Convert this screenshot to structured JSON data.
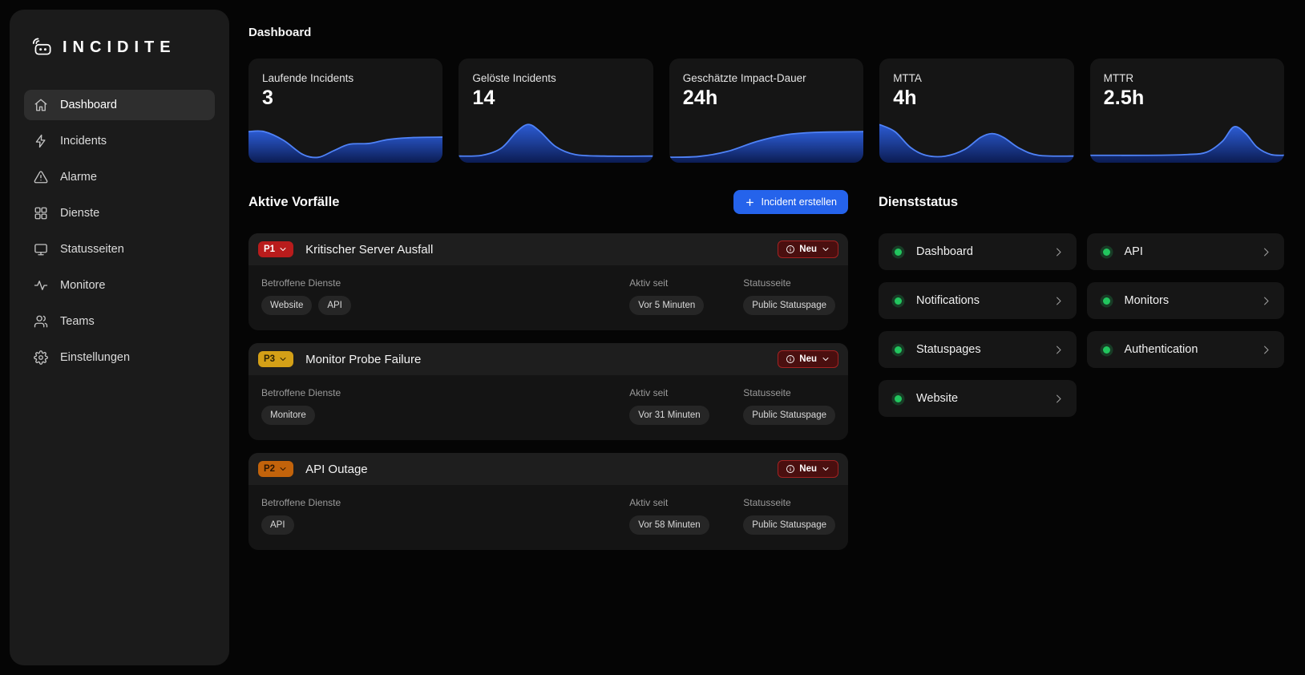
{
  "colors": {
    "accent_blue": "#2563eb",
    "spark_line": "#4f82f7",
    "status_green": "#22c55e",
    "neu_badge_bg": "#4a0f0f",
    "neu_badge_border": "#a32222"
  },
  "sidebar": {
    "logo": "INCIDITE",
    "items": [
      {
        "label": "Dashboard",
        "icon": "home-icon",
        "active": true
      },
      {
        "label": "Incidents",
        "icon": "bolt-icon",
        "active": false
      },
      {
        "label": "Alarme",
        "icon": "alert-triangle-icon",
        "active": false
      },
      {
        "label": "Dienste",
        "icon": "grid-icon",
        "active": false
      },
      {
        "label": "Statusseiten",
        "icon": "monitor-icon",
        "active": false
      },
      {
        "label": "Monitore",
        "icon": "activity-icon",
        "active": false
      },
      {
        "label": "Teams",
        "icon": "users-icon",
        "active": false
      },
      {
        "label": "Einstellungen",
        "icon": "gear-icon",
        "active": false
      }
    ]
  },
  "header": {
    "title": "Dashboard"
  },
  "stats": [
    {
      "label": "Laufende Incidents",
      "value": "3",
      "spark": [
        [
          0,
          0.3
        ],
        [
          0.08,
          0.3
        ],
        [
          0.18,
          0.52
        ],
        [
          0.28,
          0.88
        ],
        [
          0.36,
          0.95
        ],
        [
          0.44,
          0.78
        ],
        [
          0.52,
          0.62
        ],
        [
          0.62,
          0.6
        ],
        [
          0.72,
          0.5
        ],
        [
          0.85,
          0.45
        ],
        [
          1,
          0.44
        ]
      ]
    },
    {
      "label": "Gelöste Incidents",
      "value": "14",
      "spark": [
        [
          0,
          0.92
        ],
        [
          0.12,
          0.9
        ],
        [
          0.22,
          0.72
        ],
        [
          0.3,
          0.3
        ],
        [
          0.36,
          0.12
        ],
        [
          0.42,
          0.3
        ],
        [
          0.5,
          0.68
        ],
        [
          0.6,
          0.88
        ],
        [
          0.75,
          0.92
        ],
        [
          1,
          0.92
        ]
      ]
    },
    {
      "label": "Geschätzte Impact-Dauer",
      "value": "24h",
      "spark": [
        [
          0,
          0.95
        ],
        [
          0.15,
          0.93
        ],
        [
          0.3,
          0.8
        ],
        [
          0.45,
          0.55
        ],
        [
          0.6,
          0.38
        ],
        [
          0.75,
          0.32
        ],
        [
          1,
          0.3
        ]
      ]
    },
    {
      "label": "MTTA",
      "value": "4h",
      "spark": [
        [
          0,
          0.12
        ],
        [
          0.08,
          0.3
        ],
        [
          0.16,
          0.7
        ],
        [
          0.24,
          0.9
        ],
        [
          0.34,
          0.92
        ],
        [
          0.44,
          0.75
        ],
        [
          0.52,
          0.45
        ],
        [
          0.58,
          0.35
        ],
        [
          0.64,
          0.45
        ],
        [
          0.72,
          0.72
        ],
        [
          0.82,
          0.9
        ],
        [
          1,
          0.92
        ]
      ]
    },
    {
      "label": "MTTR",
      "value": "2.5h",
      "spark": [
        [
          0,
          0.9
        ],
        [
          0.3,
          0.9
        ],
        [
          0.5,
          0.88
        ],
        [
          0.6,
          0.82
        ],
        [
          0.68,
          0.55
        ],
        [
          0.74,
          0.18
        ],
        [
          0.8,
          0.35
        ],
        [
          0.86,
          0.7
        ],
        [
          0.93,
          0.88
        ],
        [
          1,
          0.9
        ]
      ]
    }
  ],
  "incidents_section": {
    "title": "Aktive Vorfälle",
    "create_button": "Incident erstellen",
    "labels": {
      "services": "Betroffene Dienste",
      "active_since": "Aktiv seit",
      "statuspage": "Statusseite"
    },
    "incidents": [
      {
        "priority": "P1",
        "badge_bg": "#b91c1c",
        "badge_fg": "#ffffff",
        "title": "Kritischer Server Ausfall",
        "status": "Neu",
        "services": [
          "Website",
          "API"
        ],
        "active_since": "Vor 5 Minuten",
        "statuspage": "Public Statuspage"
      },
      {
        "priority": "P3",
        "badge_bg": "#d4a017",
        "badge_fg": "#2d2305",
        "title": "Monitor Probe Failure",
        "status": "Neu",
        "services": [
          "Monitore"
        ],
        "active_since": "Vor 31 Minuten",
        "statuspage": "Public Statuspage"
      },
      {
        "priority": "P2",
        "badge_bg": "#c2630b",
        "badge_fg": "#2d1703",
        "title": "API Outage",
        "status": "Neu",
        "services": [
          "API"
        ],
        "active_since": "Vor 58 Minuten",
        "statuspage": "Public Statuspage"
      }
    ]
  },
  "services_section": {
    "title": "Dienststatus",
    "services": [
      "Dashboard",
      "API",
      "Notifications",
      "Monitors",
      "Statuspages",
      "Authentication",
      "Website"
    ]
  }
}
